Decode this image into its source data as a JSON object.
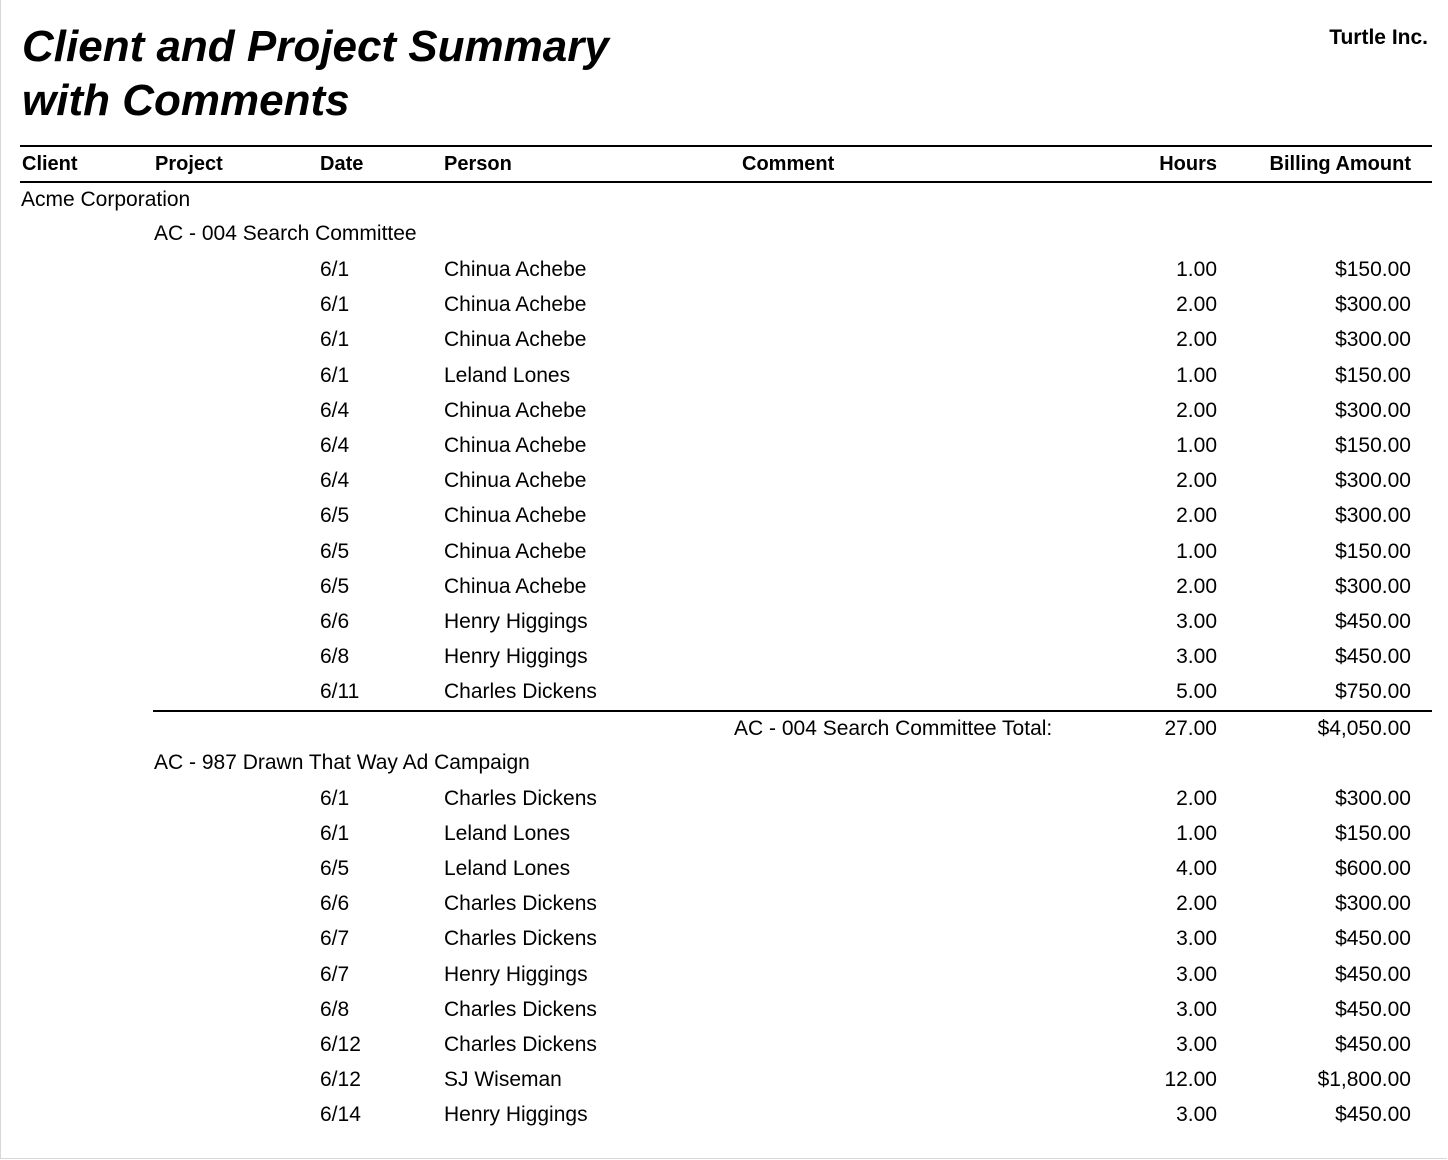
{
  "report": {
    "title_line1": "Client and Project Summary",
    "title_line2": "with Comments",
    "company": "Turtle Inc."
  },
  "columns": {
    "client": "Client",
    "project": "Project",
    "date": "Date",
    "person": "Person",
    "comment": "Comment",
    "hours": "Hours",
    "billing": "Billing Amount"
  },
  "clients": [
    {
      "name": "Acme Corporation",
      "projects": [
        {
          "name": "AC - 004  Search Committee",
          "rows": [
            {
              "date": "6/1",
              "person": "Chinua Achebe",
              "comment": "",
              "hours": "1.00",
              "amount": "$150.00"
            },
            {
              "date": "6/1",
              "person": "Chinua Achebe",
              "comment": "",
              "hours": "2.00",
              "amount": "$300.00"
            },
            {
              "date": "6/1",
              "person": "Chinua Achebe",
              "comment": "",
              "hours": "2.00",
              "amount": "$300.00"
            },
            {
              "date": "6/1",
              "person": "Leland Lones",
              "comment": "",
              "hours": "1.00",
              "amount": "$150.00"
            },
            {
              "date": "6/4",
              "person": "Chinua Achebe",
              "comment": "",
              "hours": "2.00",
              "amount": "$300.00"
            },
            {
              "date": "6/4",
              "person": "Chinua Achebe",
              "comment": "",
              "hours": "1.00",
              "amount": "$150.00"
            },
            {
              "date": "6/4",
              "person": "Chinua Achebe",
              "comment": "",
              "hours": "2.00",
              "amount": "$300.00"
            },
            {
              "date": "6/5",
              "person": "Chinua Achebe",
              "comment": "",
              "hours": "2.00",
              "amount": "$300.00"
            },
            {
              "date": "6/5",
              "person": "Chinua Achebe",
              "comment": "",
              "hours": "1.00",
              "amount": "$150.00"
            },
            {
              "date": "6/5",
              "person": "Chinua Achebe",
              "comment": "",
              "hours": "2.00",
              "amount": "$300.00"
            },
            {
              "date": "6/6",
              "person": "Henry Higgings",
              "comment": "",
              "hours": "3.00",
              "amount": "$450.00"
            },
            {
              "date": "6/8",
              "person": "Henry Higgings",
              "comment": "",
              "hours": "3.00",
              "amount": "$450.00"
            },
            {
              "date": "6/11",
              "person": "Charles Dickens",
              "comment": "",
              "hours": "5.00",
              "amount": "$750.00"
            }
          ],
          "total": {
            "label": "AC - 004  Search Committee Total:",
            "hours": "27.00",
            "amount": "$4,050.00"
          }
        },
        {
          "name": "AC - 987  Drawn That Way Ad Campaign",
          "rows": [
            {
              "date": "6/1",
              "person": "Charles Dickens",
              "comment": "",
              "hours": "2.00",
              "amount": "$300.00"
            },
            {
              "date": "6/1",
              "person": "Leland Lones",
              "comment": "",
              "hours": "1.00",
              "amount": "$150.00"
            },
            {
              "date": "6/5",
              "person": "Leland Lones",
              "comment": "",
              "hours": "4.00",
              "amount": "$600.00"
            },
            {
              "date": "6/6",
              "person": "Charles Dickens",
              "comment": "",
              "hours": "2.00",
              "amount": "$300.00"
            },
            {
              "date": "6/7",
              "person": "Charles Dickens",
              "comment": "",
              "hours": "3.00",
              "amount": "$450.00"
            },
            {
              "date": "6/7",
              "person": "Henry Higgings",
              "comment": "",
              "hours": "3.00",
              "amount": "$450.00"
            },
            {
              "date": "6/8",
              "person": "Charles Dickens",
              "comment": "",
              "hours": "3.00",
              "amount": "$450.00"
            },
            {
              "date": "6/12",
              "person": "Charles Dickens",
              "comment": "",
              "hours": "3.00",
              "amount": "$450.00"
            },
            {
              "date": "6/12",
              "person": "SJ Wiseman",
              "comment": "",
              "hours": "12.00",
              "amount": "$1,800.00"
            },
            {
              "date": "6/14",
              "person": "Henry Higgings",
              "comment": "",
              "hours": "3.00",
              "amount": "$450.00"
            }
          ]
        }
      ]
    }
  ]
}
